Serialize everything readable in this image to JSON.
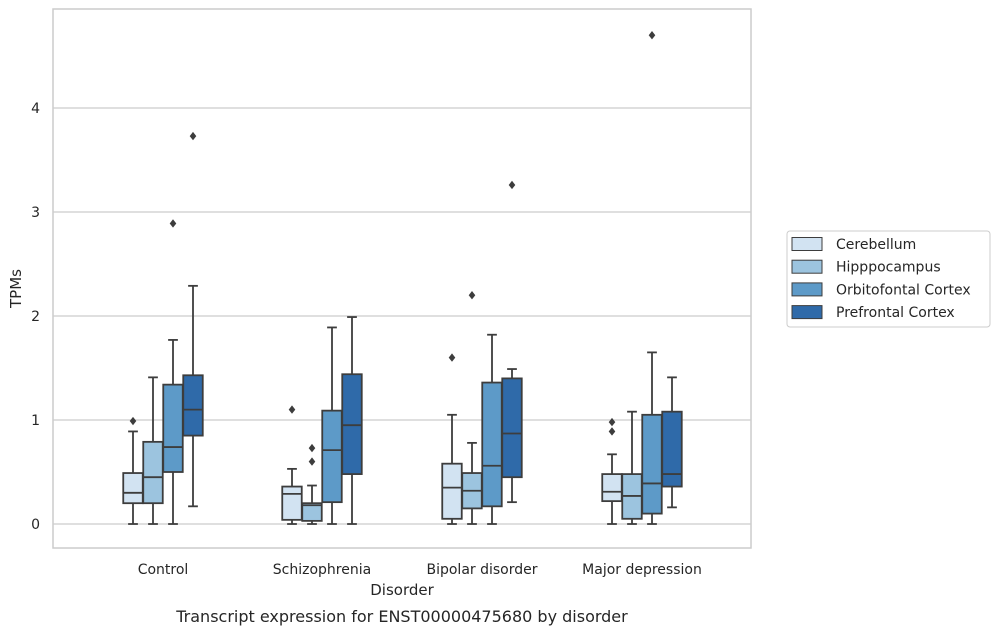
{
  "caption": "Transcript expression for ENST00000475680 by disorder",
  "chart_data": {
    "type": "box",
    "xlabel": "Disorder",
    "ylabel": "TPMs",
    "ylim": [
      -0.22,
      5.0
    ],
    "yticks": [
      0,
      1,
      2,
      3,
      4
    ],
    "grid": true,
    "legend_position": "right",
    "categories": [
      "Control",
      "Schizophrenia",
      "Bipolar disorder",
      "Major depression"
    ],
    "series": [
      {
        "name": "Cerebellum",
        "color": "#d2e3f2",
        "boxes": [
          {
            "whisker_low": 0.0,
            "q1": 0.2,
            "median": 0.3,
            "q3": 0.49,
            "whisker_high": 0.89,
            "outliers": [
              0.99
            ]
          },
          {
            "whisker_low": 0.0,
            "q1": 0.04,
            "median": 0.29,
            "q3": 0.36,
            "whisker_high": 0.53,
            "outliers": [
              1.1
            ]
          },
          {
            "whisker_low": 0.0,
            "q1": 0.05,
            "median": 0.35,
            "q3": 0.58,
            "whisker_high": 1.05,
            "outliers": [
              1.6
            ]
          },
          {
            "whisker_low": 0.0,
            "q1": 0.22,
            "median": 0.31,
            "q3": 0.48,
            "whisker_high": 0.67,
            "outliers": [
              0.89,
              0.98
            ]
          }
        ]
      },
      {
        "name": "Hipppocampus",
        "color": "#9cc4df",
        "boxes": [
          {
            "whisker_low": 0.0,
            "q1": 0.2,
            "median": 0.45,
            "q3": 0.79,
            "whisker_high": 1.41,
            "outliers": []
          },
          {
            "whisker_low": 0.0,
            "q1": 0.03,
            "median": 0.18,
            "q3": 0.2,
            "whisker_high": 0.37,
            "outliers": [
              0.6,
              0.73
            ]
          },
          {
            "whisker_low": 0.0,
            "q1": 0.15,
            "median": 0.32,
            "q3": 0.49,
            "whisker_high": 0.78,
            "outliers": [
              2.2
            ]
          },
          {
            "whisker_low": 0.0,
            "q1": 0.05,
            "median": 0.27,
            "q3": 0.48,
            "whisker_high": 1.08,
            "outliers": []
          }
        ]
      },
      {
        "name": "Orbitofontal Cortex",
        "color": "#5d9ac8",
        "boxes": [
          {
            "whisker_low": 0.0,
            "q1": 0.5,
            "median": 0.74,
            "q3": 1.34,
            "whisker_high": 1.77,
            "outliers": [
              2.89
            ]
          },
          {
            "whisker_low": 0.0,
            "q1": 0.21,
            "median": 0.71,
            "q3": 1.09,
            "whisker_high": 1.89,
            "outliers": []
          },
          {
            "whisker_low": 0.0,
            "q1": 0.17,
            "median": 0.56,
            "q3": 1.36,
            "whisker_high": 1.82,
            "outliers": []
          },
          {
            "whisker_low": 0.0,
            "q1": 0.1,
            "median": 0.39,
            "q3": 1.05,
            "whisker_high": 1.65,
            "outliers": [
              4.7
            ]
          }
        ]
      },
      {
        "name": "Prefrontal Cortex",
        "color": "#2f6aa9",
        "boxes": [
          {
            "whisker_low": 0.17,
            "q1": 0.85,
            "median": 1.1,
            "q3": 1.43,
            "whisker_high": 2.29,
            "outliers": [
              3.73
            ]
          },
          {
            "whisker_low": 0.0,
            "q1": 0.48,
            "median": 0.95,
            "q3": 1.44,
            "whisker_high": 1.99,
            "outliers": []
          },
          {
            "whisker_low": 0.21,
            "q1": 0.45,
            "median": 0.87,
            "q3": 1.4,
            "whisker_high": 1.49,
            "outliers": [
              3.26
            ]
          },
          {
            "whisker_low": 0.16,
            "q1": 0.36,
            "median": 0.48,
            "q3": 1.08,
            "whisker_high": 1.41,
            "outliers": []
          }
        ]
      }
    ]
  }
}
